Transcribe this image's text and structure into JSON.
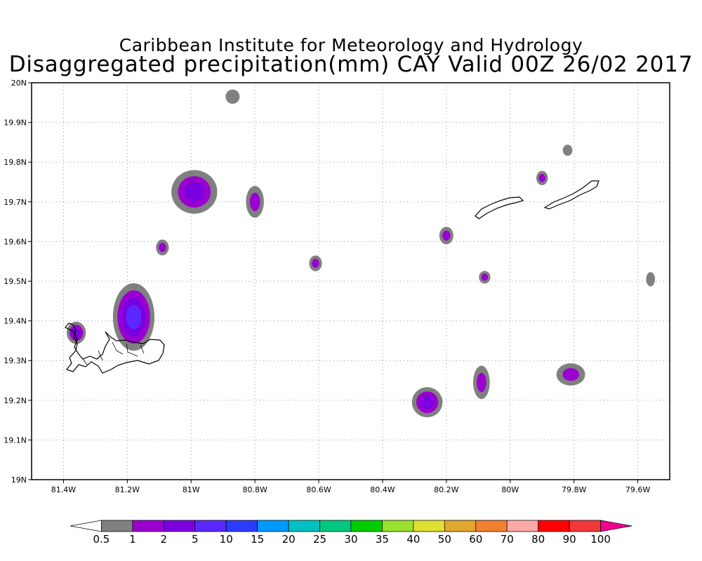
{
  "header": {
    "title": "Caribbean Institute for Meteorology and Hydrology",
    "subtitle": "Disaggregated precipitation(mm) CAY Valid 00Z 26/02 2017"
  },
  "map": {
    "lon_range": [
      -81.5,
      -79.5
    ],
    "lat_range": [
      19.0,
      20.0
    ],
    "x_ticks": [
      {
        "lon": -81.4,
        "label": "81.4W"
      },
      {
        "lon": -81.2,
        "label": "81.2W"
      },
      {
        "lon": -81.0,
        "label": "81W"
      },
      {
        "lon": -80.8,
        "label": "80.8W"
      },
      {
        "lon": -80.6,
        "label": "80.6W"
      },
      {
        "lon": -80.4,
        "label": "80.4W"
      },
      {
        "lon": -80.2,
        "label": "80.2W"
      },
      {
        "lon": -80.0,
        "label": "80W"
      },
      {
        "lon": -79.8,
        "label": "79.8W"
      },
      {
        "lon": -79.6,
        "label": "79.6W"
      }
    ],
    "y_ticks": [
      {
        "lat": 19.0,
        "label": "19N"
      },
      {
        "lat": 19.1,
        "label": "19.1N"
      },
      {
        "lat": 19.2,
        "label": "19.2N"
      },
      {
        "lat": 19.3,
        "label": "19.3N"
      },
      {
        "lat": 19.4,
        "label": "19.4N"
      },
      {
        "lat": 19.5,
        "label": "19.5N"
      },
      {
        "lat": 19.6,
        "label": "19.6N"
      },
      {
        "lat": 19.7,
        "label": "19.7N"
      },
      {
        "lat": 19.8,
        "label": "19.8N"
      },
      {
        "lat": 19.9,
        "label": "19.9N"
      },
      {
        "lat": 20.0,
        "label": "20N"
      }
    ],
    "grid": true,
    "precip_cells": [
      {
        "lon": -80.87,
        "lat": 19.965,
        "rx": 0.022,
        "ry": 0.018,
        "level": "0.5"
      },
      {
        "lon": -80.99,
        "lat": 19.725,
        "rx": 0.072,
        "ry": 0.055,
        "level": "2"
      },
      {
        "lon": -80.8,
        "lat": 19.7,
        "rx": 0.028,
        "ry": 0.04,
        "level": "1"
      },
      {
        "lon": -81.09,
        "lat": 19.585,
        "rx": 0.02,
        "ry": 0.02,
        "level": "1"
      },
      {
        "lon": -80.61,
        "lat": 19.545,
        "rx": 0.02,
        "ry": 0.02,
        "level": "1"
      },
      {
        "lon": -81.18,
        "lat": 19.41,
        "rx": 0.065,
        "ry": 0.085,
        "level": "5"
      },
      {
        "lon": -81.36,
        "lat": 19.37,
        "rx": 0.03,
        "ry": 0.028,
        "level": "2"
      },
      {
        "lon": -80.2,
        "lat": 19.615,
        "rx": 0.022,
        "ry": 0.022,
        "level": "1"
      },
      {
        "lon": -80.08,
        "lat": 19.51,
        "rx": 0.018,
        "ry": 0.016,
        "level": "1"
      },
      {
        "lon": -79.9,
        "lat": 19.76,
        "rx": 0.018,
        "ry": 0.018,
        "level": "1"
      },
      {
        "lon": -79.82,
        "lat": 19.83,
        "rx": 0.015,
        "ry": 0.014,
        "level": "0.5"
      },
      {
        "lon": -79.56,
        "lat": 19.505,
        "rx": 0.014,
        "ry": 0.018,
        "level": "0.5"
      },
      {
        "lon": -80.26,
        "lat": 19.195,
        "rx": 0.048,
        "ry": 0.038,
        "level": "2"
      },
      {
        "lon": -80.09,
        "lat": 19.245,
        "rx": 0.026,
        "ry": 0.042,
        "level": "1"
      },
      {
        "lon": -79.81,
        "lat": 19.265,
        "rx": 0.045,
        "ry": 0.028,
        "level": "1"
      }
    ]
  },
  "colorbar": {
    "bins": [
      {
        "color": "#ffffff"
      },
      {
        "color": "#808080"
      },
      {
        "color": "#9a00d0"
      },
      {
        "color": "#7a00e0"
      },
      {
        "color": "#5a28ff"
      },
      {
        "color": "#2a3cff"
      },
      {
        "color": "#0099ff"
      },
      {
        "color": "#00c0c0"
      },
      {
        "color": "#00c880"
      },
      {
        "color": "#00cc00"
      },
      {
        "color": "#99e030"
      },
      {
        "color": "#e0e030"
      },
      {
        "color": "#e0a830"
      },
      {
        "color": "#f08030"
      },
      {
        "color": "#ffa8a8"
      },
      {
        "color": "#ff0000"
      },
      {
        "color": "#f03838"
      },
      {
        "color": "#f00090"
      }
    ],
    "labels": [
      "0.5",
      "1",
      "2",
      "5",
      "10",
      "15",
      "20",
      "25",
      "30",
      "35",
      "40",
      "50",
      "60",
      "70",
      "80",
      "90",
      "100"
    ]
  },
  "colors": {
    "grid": "#999999",
    "frame": "#000000",
    "island": "#000000"
  }
}
